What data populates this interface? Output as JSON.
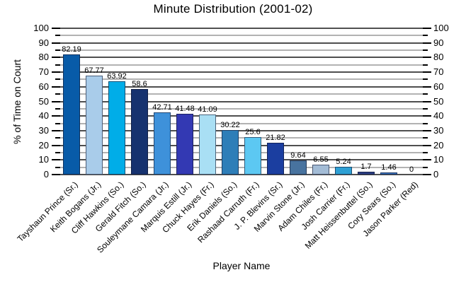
{
  "title": "Minute Distribution (2001-02)",
  "chart_data": {
    "type": "bar",
    "title": "Minute Distribution (2001-02)",
    "xlabel": "Player Name",
    "ylabel": "% of Time on Court",
    "ylim": [
      0,
      100
    ],
    "y_major_step": 10,
    "y_minor_step": 5,
    "grid": true,
    "legend": false,
    "dual_y_axis": true,
    "y_ticks": [
      0,
      10,
      20,
      30,
      40,
      50,
      60,
      70,
      80,
      90,
      100
    ],
    "categories": [
      "Tayshaun Prince (Sr.)",
      "Keith Bogans (Jr.)",
      "Cliff Hawkins (So.)",
      "Gerald Fitch (So.)",
      "Souleymane Camara (Jr.)",
      "Marquis Estill (Jr.)",
      "Chuck Hayes (Fr.)",
      "Erik Daniels (So.)",
      "Rashaad Carruth (Fr.)",
      "J. P. Blevins (Sr.)",
      "Marvin Stone (Jr.)",
      "Adam Chiles (Fr.)",
      "Josh Carrier (Fr.)",
      "Matt Heissenbuttel (So.)",
      "Cory Sears (So.)",
      "Jason Parker (Red)"
    ],
    "values": [
      82.19,
      67.77,
      63.92,
      58.6,
      42.71,
      41.48,
      41.09,
      30.22,
      25.6,
      21.82,
      9.64,
      6.55,
      5.24,
      1.7,
      1.46,
      0
    ],
    "value_labels": [
      "82.19",
      "67.77",
      "63.92",
      "58.6",
      "42.71",
      "41.48",
      "41.09",
      "30.22",
      "25.6",
      "21.82",
      "9.64",
      "6.55",
      "5.24",
      "1.7",
      "1.46",
      "0"
    ],
    "bar_colors": [
      "#085BA8",
      "#A9CCEA",
      "#00ADE8",
      "#16326F",
      "#3E91DA",
      "#3339B3",
      "#A9DFF4",
      "#2E7EB8",
      "#5CC8F2",
      "#1B3EA0",
      "#48739F",
      "#A3BCD6",
      "#2EA0D4",
      "#2C3F85",
      "#3A74BF",
      "#3A74BF"
    ]
  },
  "colors": {
    "background": "#ffffff",
    "major_grid": "#4f4f4f",
    "minor_grid": "#b2b2b2",
    "tick": "#000000",
    "text": "#000000"
  }
}
